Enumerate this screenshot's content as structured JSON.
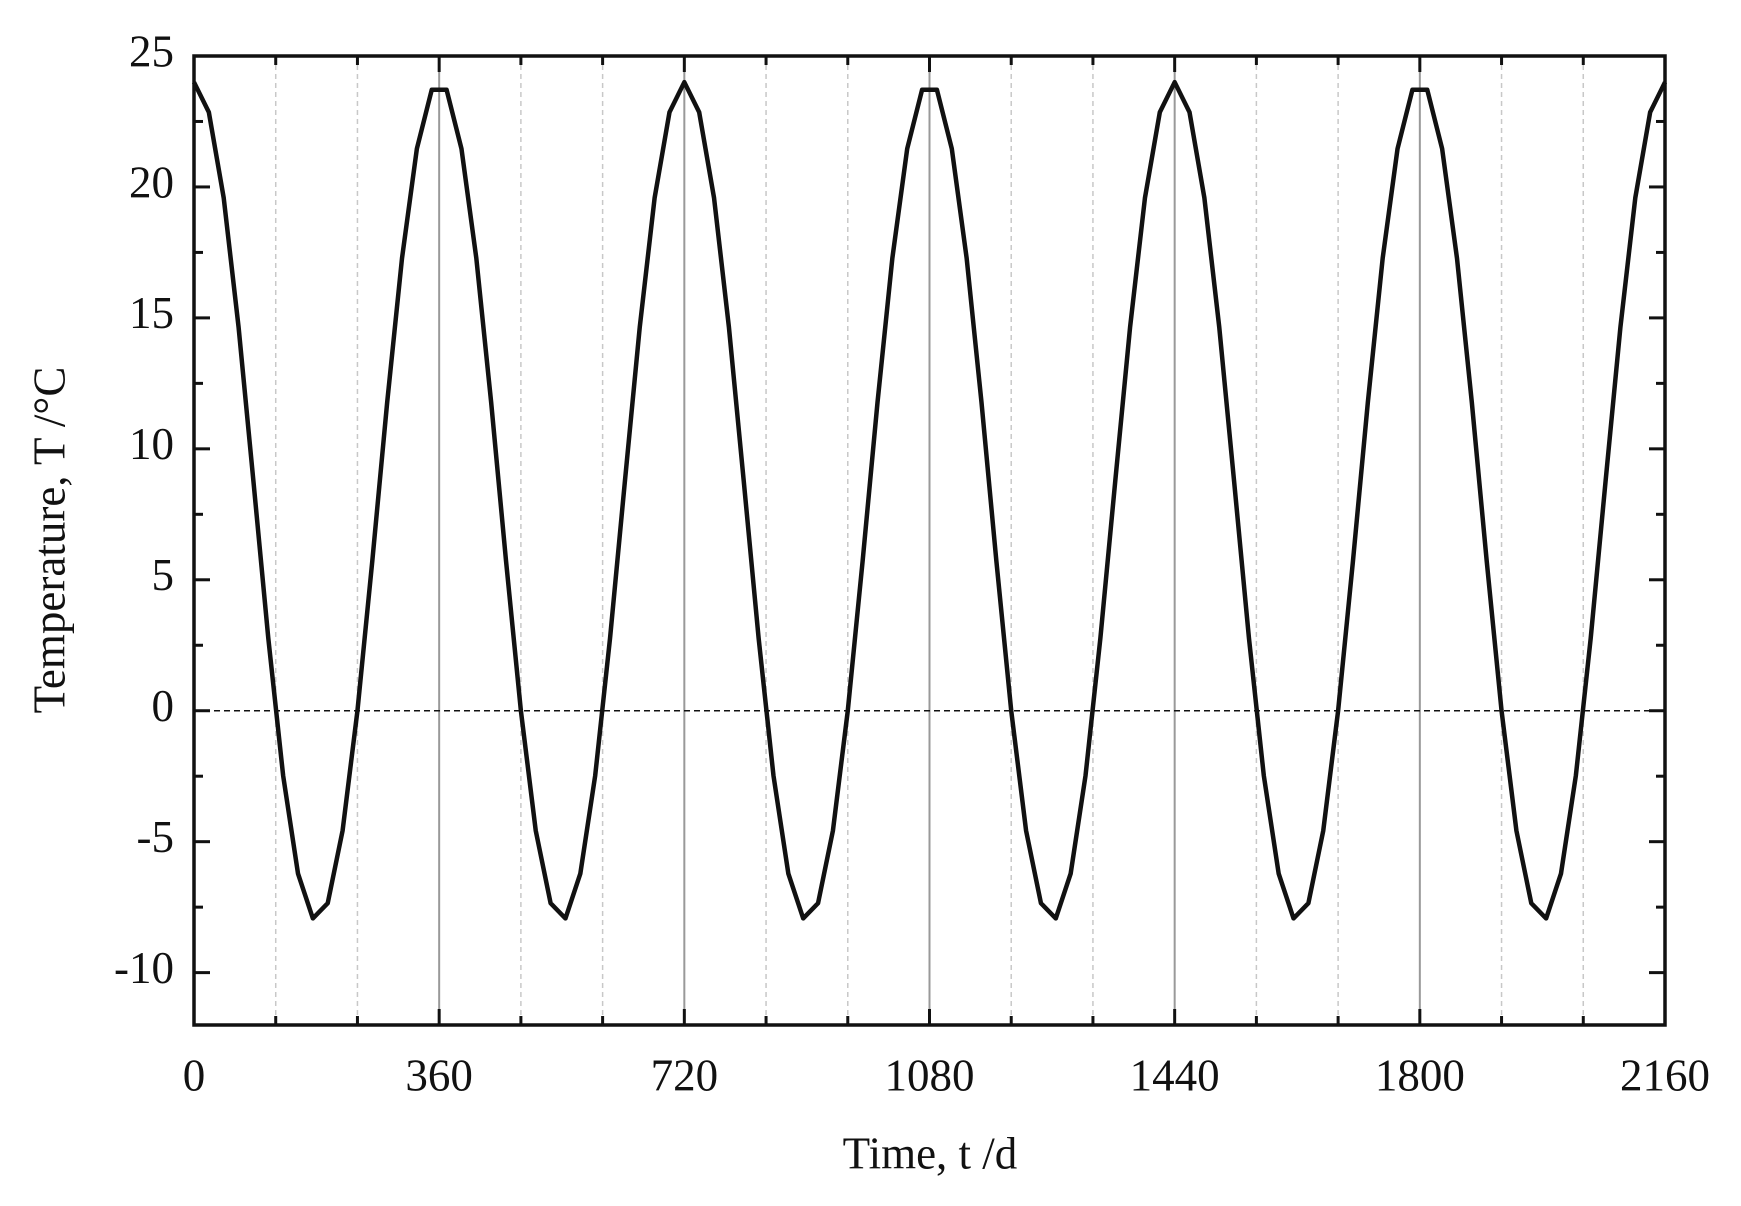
{
  "chart_data": {
    "type": "line",
    "x_label": "Time, t /d",
    "y_label": "Temperature, T /°C",
    "xlim": [
      0,
      2160
    ],
    "xticks": [
      0,
      360,
      720,
      1080,
      1440,
      1800,
      2160
    ],
    "x_minor_ticks": [
      120,
      240,
      480,
      600,
      840,
      960,
      1200,
      1320,
      1560,
      1680,
      1920,
      2040
    ],
    "ylim": [
      -12,
      25
    ],
    "yticks": [
      -10,
      -5,
      0,
      5,
      10,
      15,
      20,
      25
    ],
    "y_minor_ticks": [
      -7.5,
      -2.5,
      2.5,
      7.5,
      12.5,
      17.5,
      22.5
    ],
    "reference_line": 0,
    "grid": true,
    "series": [
      {
        "color": "#111111",
        "x": [
          0,
          21.82,
          43.64,
          65.45,
          87.27,
          109.09,
          130.91,
          152.73,
          174.55,
          196.36,
          218.18,
          240,
          261.82,
          283.64,
          305.45,
          327.27,
          349.09,
          370.91,
          392.73,
          414.55,
          436.36,
          458.18,
          480,
          501.82,
          523.64,
          545.45,
          567.27,
          589.09,
          610.91,
          632.73,
          654.55,
          676.36,
          698.18,
          720,
          741.82,
          763.64,
          785.45,
          807.27,
          829.09,
          850.91,
          872.73,
          894.55,
          916.36,
          938.18,
          960,
          981.82,
          1003.64,
          1025.45,
          1047.27,
          1069.09,
          1090.91,
          1112.73,
          1134.55,
          1156.36,
          1178.18,
          1200,
          1221.82,
          1243.64,
          1265.45,
          1287.27,
          1309.09,
          1330.91,
          1352.73,
          1374.55,
          1396.36,
          1418.18,
          1440,
          1461.82,
          1483.64,
          1505.45,
          1527.27,
          1549.09,
          1570.91,
          1592.73,
          1614.55,
          1636.36,
          1658.18,
          1680,
          1701.82,
          1723.64,
          1745.45,
          1767.27,
          1789.09,
          1810.91,
          1832.73,
          1854.55,
          1876.36,
          1898.18,
          1920,
          1941.82,
          1963.64,
          1985.45,
          2007.27,
          2029.09,
          2050.91,
          2072.73,
          2094.55,
          2116.36,
          2138.18,
          2160
        ],
        "values": [
          24,
          22.85,
          19.58,
          14.65,
          8.76,
          2.77,
          -2.48,
          -6.22,
          -7.93,
          -7.35,
          -4.58,
          0,
          5.72,
          11.77,
          17.28,
          21.46,
          23.71,
          23.71,
          21.46,
          17.28,
          11.77,
          5.72,
          0,
          -4.58,
          -7.35,
          -7.93,
          -6.22,
          -2.48,
          2.77,
          8.76,
          14.65,
          19.58,
          22.85,
          24,
          22.85,
          19.58,
          14.65,
          8.76,
          2.77,
          -2.48,
          -6.22,
          -7.93,
          -7.35,
          -4.58,
          0,
          5.72,
          11.77,
          17.28,
          21.46,
          23.71,
          23.71,
          21.46,
          17.28,
          11.77,
          5.72,
          0,
          -4.58,
          -7.35,
          -7.93,
          -6.22,
          -2.48,
          2.77,
          8.76,
          14.65,
          19.58,
          22.85,
          24,
          22.85,
          19.58,
          14.65,
          8.76,
          2.77,
          -2.48,
          -6.22,
          -7.93,
          -7.35,
          -4.58,
          0,
          5.72,
          11.77,
          17.28,
          21.46,
          23.71,
          23.71,
          21.46,
          17.28,
          11.77,
          5.72,
          0,
          -4.58,
          -7.35,
          -7.93,
          -6.22,
          -2.48,
          2.77,
          8.76,
          14.65,
          19.58,
          22.85,
          24
        ]
      }
    ]
  }
}
